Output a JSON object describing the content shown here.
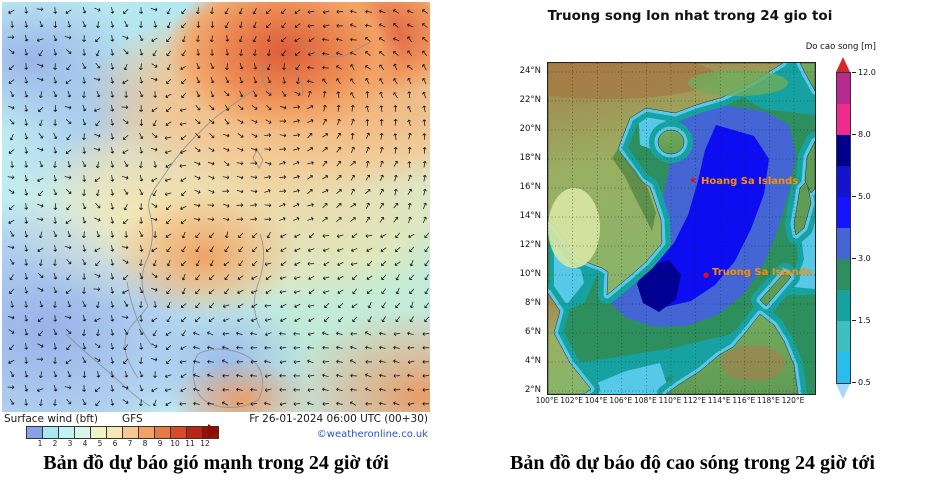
{
  "left_panel": {
    "legend_label": "Surface wind (bft)",
    "model_label": "GFS",
    "timestamp": "Fr 26-01-2024 06:00 UTC (00+30)",
    "watermark": "©weatheronline.co.uk",
    "caption": "Bản đồ dự báo gió mạnh trong 24 giờ tới",
    "wind_scale": {
      "unit": "bft",
      "ticks": [
        "1",
        "2",
        "3",
        "4",
        "5",
        "6",
        "7",
        "8",
        "9",
        "10",
        "11",
        "12"
      ],
      "colors": [
        "#85a3e6",
        "#a9e9f2",
        "#c3f2f2",
        "#d8f6ea",
        "#eff3c4",
        "#f8e6b4",
        "#f7c992",
        "#f2a266",
        "#e67a45",
        "#d84a28",
        "#bc2413",
        "#9c0f05"
      ],
      "overflow_arrow_color": "#8a0c02"
    }
  },
  "right_panel": {
    "title": "Truong song lon nhat trong 24 gio toi",
    "caption": "Bản đồ dự báo độ cao sóng trong 24 giờ tới",
    "colorbar": {
      "label": "Do cao song [m]",
      "tick_labels": [
        "12.0",
        "8.0",
        "5.0",
        "3.0",
        "1.5",
        "0.5"
      ],
      "bands_top_to_bottom": [
        "#b52a8c",
        "#ef2b8f",
        "#00008b",
        "#1414cd",
        "#1414ff",
        "#4466d4",
        "#2e8f5e",
        "#17a2a2",
        "#3fc0c0",
        "#29bdee"
      ],
      "over_color": "#d62828",
      "under_color": "#a8d8f6"
    },
    "y_ticks": [
      "24°N",
      "22°N",
      "20°N",
      "18°N",
      "16°N",
      "14°N",
      "12°N",
      "10°N",
      "8°N",
      "6°N",
      "4°N",
      "2°N"
    ],
    "x_ticks": [
      "100°E",
      "102°E",
      "104°E",
      "106°E",
      "108°E",
      "110°E",
      "112°E",
      "114°E",
      "116°E",
      "118°E",
      "120°E"
    ],
    "markers": [
      {
        "label": "Hoang Sa Islands",
        "glyph": "★",
        "color": "#ff8c00",
        "marker_color": "#e01010"
      },
      {
        "label": "Truong Sa Islands",
        "glyph": "●",
        "color": "#ff8c00",
        "marker_color": "#e01010"
      }
    ]
  }
}
